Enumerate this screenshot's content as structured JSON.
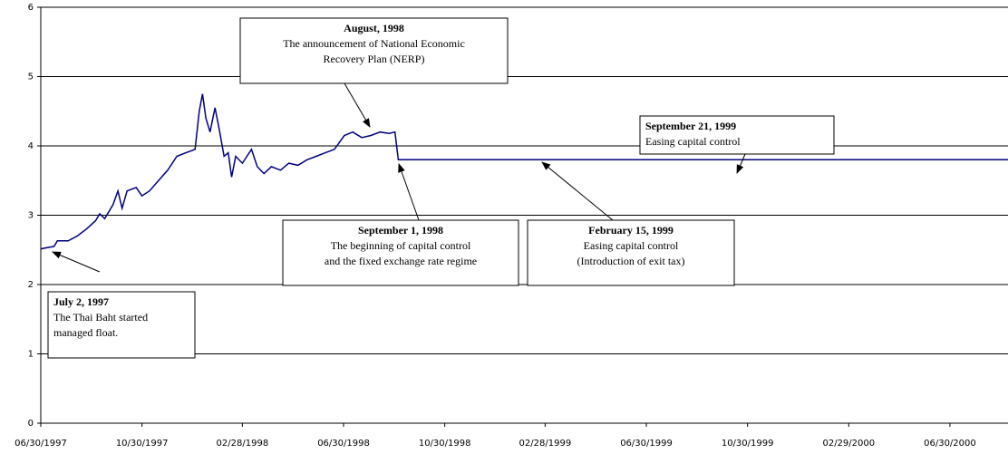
{
  "chart_data": {
    "type": "line",
    "x": [
      "06/30/1997",
      "07/02/1997",
      "07/16/1997",
      "07/20/1997",
      "08/02/1997",
      "08/13/1997",
      "08/24/1997",
      "09/04/1997",
      "09/09/1997",
      "09/15/1997",
      "09/25/1997",
      "10/01/1997",
      "10/06/1997",
      "10/12/1997",
      "10/23/1997",
      "10/30/1997",
      "11/08/1997",
      "11/19/1997",
      "11/30/1997",
      "12/11/1997",
      "12/22/1997",
      "01/02/1998",
      "01/07/1998",
      "01/11/1998",
      "01/15/1998",
      "01/20/1998",
      "01/26/1998",
      "01/31/1998",
      "02/06/1998",
      "02/11/1998",
      "02/15/1998",
      "02/20/1998",
      "02/28/1998",
      "03/11/1998",
      "03/18/1998",
      "03/26/1998",
      "04/04/1998",
      "04/15/1998",
      "04/25/1998",
      "05/06/1998",
      "05/17/1998",
      "05/28/1998",
      "06/08/1998",
      "06/19/1998",
      "07/01/1998",
      "07/11/1998",
      "07/22/1998",
      "08/02/1998",
      "08/13/1998",
      "08/24/1998",
      "08/31/1998",
      "09/04/1998",
      "09/08/2000"
    ],
    "series": [
      {
        "name": "Baht",
        "color": "#000080",
        "values": [
          2.51,
          2.52,
          2.55,
          2.63,
          2.63,
          2.7,
          2.8,
          2.92,
          3.02,
          2.95,
          3.15,
          3.35,
          3.1,
          3.35,
          3.4,
          3.28,
          3.35,
          3.5,
          3.65,
          3.85,
          3.9,
          3.95,
          4.5,
          4.75,
          4.4,
          4.2,
          4.55,
          4.25,
          3.85,
          3.9,
          3.55,
          3.85,
          3.75,
          3.95,
          3.7,
          3.6,
          3.7,
          3.65,
          3.75,
          3.72,
          3.8,
          3.85,
          3.9,
          3.95,
          4.15,
          4.2,
          4.12,
          4.15,
          4.2,
          4.18,
          4.2,
          3.8,
          3.8
        ]
      }
    ],
    "xlim": [
      "06/30/1997",
      "09/08/2000"
    ],
    "xticks": [
      "06/30/1997",
      "10/30/1997",
      "02/28/1998",
      "06/30/1998",
      "10/30/1998",
      "02/28/1999",
      "06/30/1999",
      "10/30/1999",
      "02/29/2000",
      "06/30/2000"
    ],
    "ylim": [
      0,
      6
    ],
    "yticks": [
      0,
      1,
      2,
      3,
      4,
      5,
      6
    ],
    "grid": true,
    "annotations": [
      {
        "title": "July 2, 1997",
        "lines": [
          "The Thai Baht started",
          "managed float."
        ]
      },
      {
        "title": "August, 1998",
        "lines": [
          "The announcement of National Economic",
          "Recovery Plan (NERP)"
        ]
      },
      {
        "title": "September 1, 1998",
        "lines": [
          "The beginning of capital control",
          "and the fixed exchange rate regime"
        ]
      },
      {
        "title": "February 15, 1999",
        "lines": [
          "Easing capital control",
          "(Introduction of exit tax)"
        ]
      },
      {
        "title": "September 21, 1999",
        "lines": [
          "Easing capital control"
        ]
      }
    ]
  }
}
